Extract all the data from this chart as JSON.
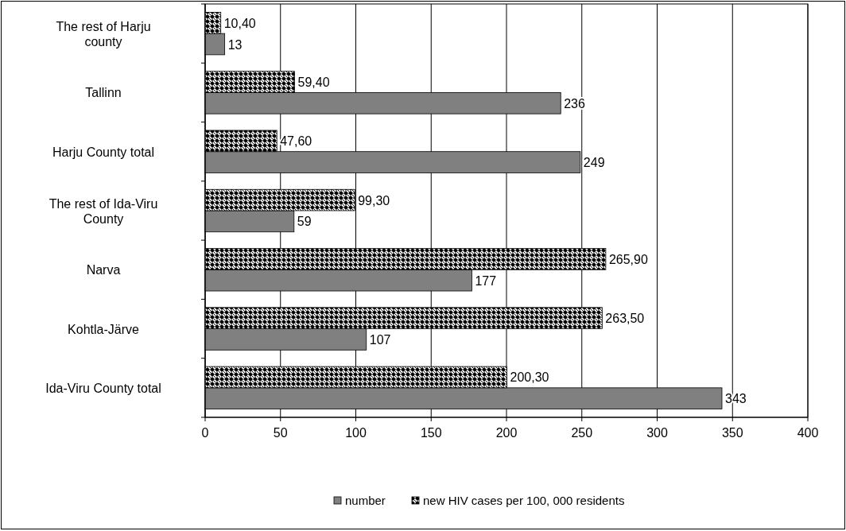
{
  "chart_data": {
    "type": "bar",
    "orientation": "horizontal",
    "categories": [
      "The rest of Harju county",
      "Tallinn",
      "Harju County total",
      "The rest of Ida-Viru County",
      "Narva",
      "Kohtla-Järve",
      "Ida-Viru County total"
    ],
    "series": [
      {
        "name": "number",
        "color": "#808080",
        "values": [
          13,
          236,
          249,
          59,
          177,
          107,
          343
        ],
        "value_labels": [
          "13",
          "236",
          "249",
          "59",
          "177",
          "107",
          "343"
        ]
      },
      {
        "name": "new HIV cases per 100, 000 residents",
        "color": "#000000",
        "values": [
          10.4,
          59.4,
          47.6,
          99.3,
          265.9,
          263.5,
          200.3
        ],
        "value_labels": [
          "10,40",
          "59,40",
          "47,60",
          "99,30",
          "265,90",
          "263,50",
          "200,30"
        ]
      }
    ],
    "xlim": [
      0,
      400
    ],
    "xticks": [
      0,
      50,
      100,
      150,
      200,
      250,
      300,
      350,
      400
    ],
    "grid": "x",
    "legend": "bottom"
  }
}
